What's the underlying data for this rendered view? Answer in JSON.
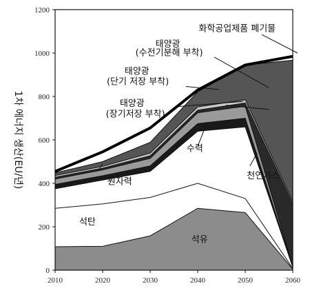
{
  "chart_data": {
    "type": "area",
    "stacked": true,
    "title": "",
    "xlabel": "",
    "ylabel": "1차 에너지 생산(EU/년)",
    "x": [
      2010,
      2020,
      2030,
      2040,
      2050,
      2060
    ],
    "xlim": [
      2010,
      2060
    ],
    "ylim": [
      0,
      1200
    ],
    "xticks": [
      "2010",
      "2020",
      "2030",
      "2040",
      "2050",
      "2060"
    ],
    "yticks": [
      "0",
      "200",
      "400",
      "600",
      "800",
      "1000",
      "1200"
    ],
    "grid": false,
    "series": [
      {
        "name": "석유",
        "color": "#8c8c8c",
        "values": [
          108,
          110,
          158,
          285,
          265,
          5
        ]
      },
      {
        "name": "석탄",
        "color": "#ffffff",
        "values": [
          177,
          195,
          177,
          115,
          65,
          3
        ]
      },
      {
        "name": "천연가스",
        "color": "#ffffff",
        "values": [
          90,
          110,
          120,
          240,
          330,
          5
        ]
      },
      {
        "name": "원자력",
        "color": "#1a1a1a",
        "values": [
          20,
          20,
          25,
          35,
          40,
          2
        ]
      },
      {
        "name": "수력",
        "color": "#9a9a9a",
        "values": [
          25,
          27,
          35,
          50,
          55,
          2
        ]
      },
      {
        "name": "태양광(장기저장 부착)",
        "color": "#2a2a2a",
        "values": [
          8,
          8,
          12,
          12,
          15,
          290
        ]
      },
      {
        "name": "태양광(단기 저장 부착)",
        "color": "#c8c8c8",
        "values": [
          8,
          8,
          12,
          15,
          15,
          10
        ]
      },
      {
        "name": "태양광(수전기분해 부착)",
        "color": "#555555",
        "values": [
          12,
          22,
          50,
          70,
          160,
          650
        ]
      }
    ],
    "total_line": {
      "name": "화학공업제품 폐기물",
      "values": [
        455,
        545,
        655,
        830,
        945,
        985
      ]
    },
    "annotations": [
      {
        "text": "화학공업제품 폐기물"
      },
      {
        "text": "태양광"
      },
      {
        "text": "(수전기분해 부착)"
      },
      {
        "text": "태양광"
      },
      {
        "text": "(단기 저장 부착)"
      },
      {
        "text": "태양광"
      },
      {
        "text": "(장기저장 부착)"
      },
      {
        "text": "수력"
      },
      {
        "text": "원자력"
      },
      {
        "text": "천연가스"
      },
      {
        "text": "석탄"
      },
      {
        "text": "석유"
      }
    ]
  }
}
